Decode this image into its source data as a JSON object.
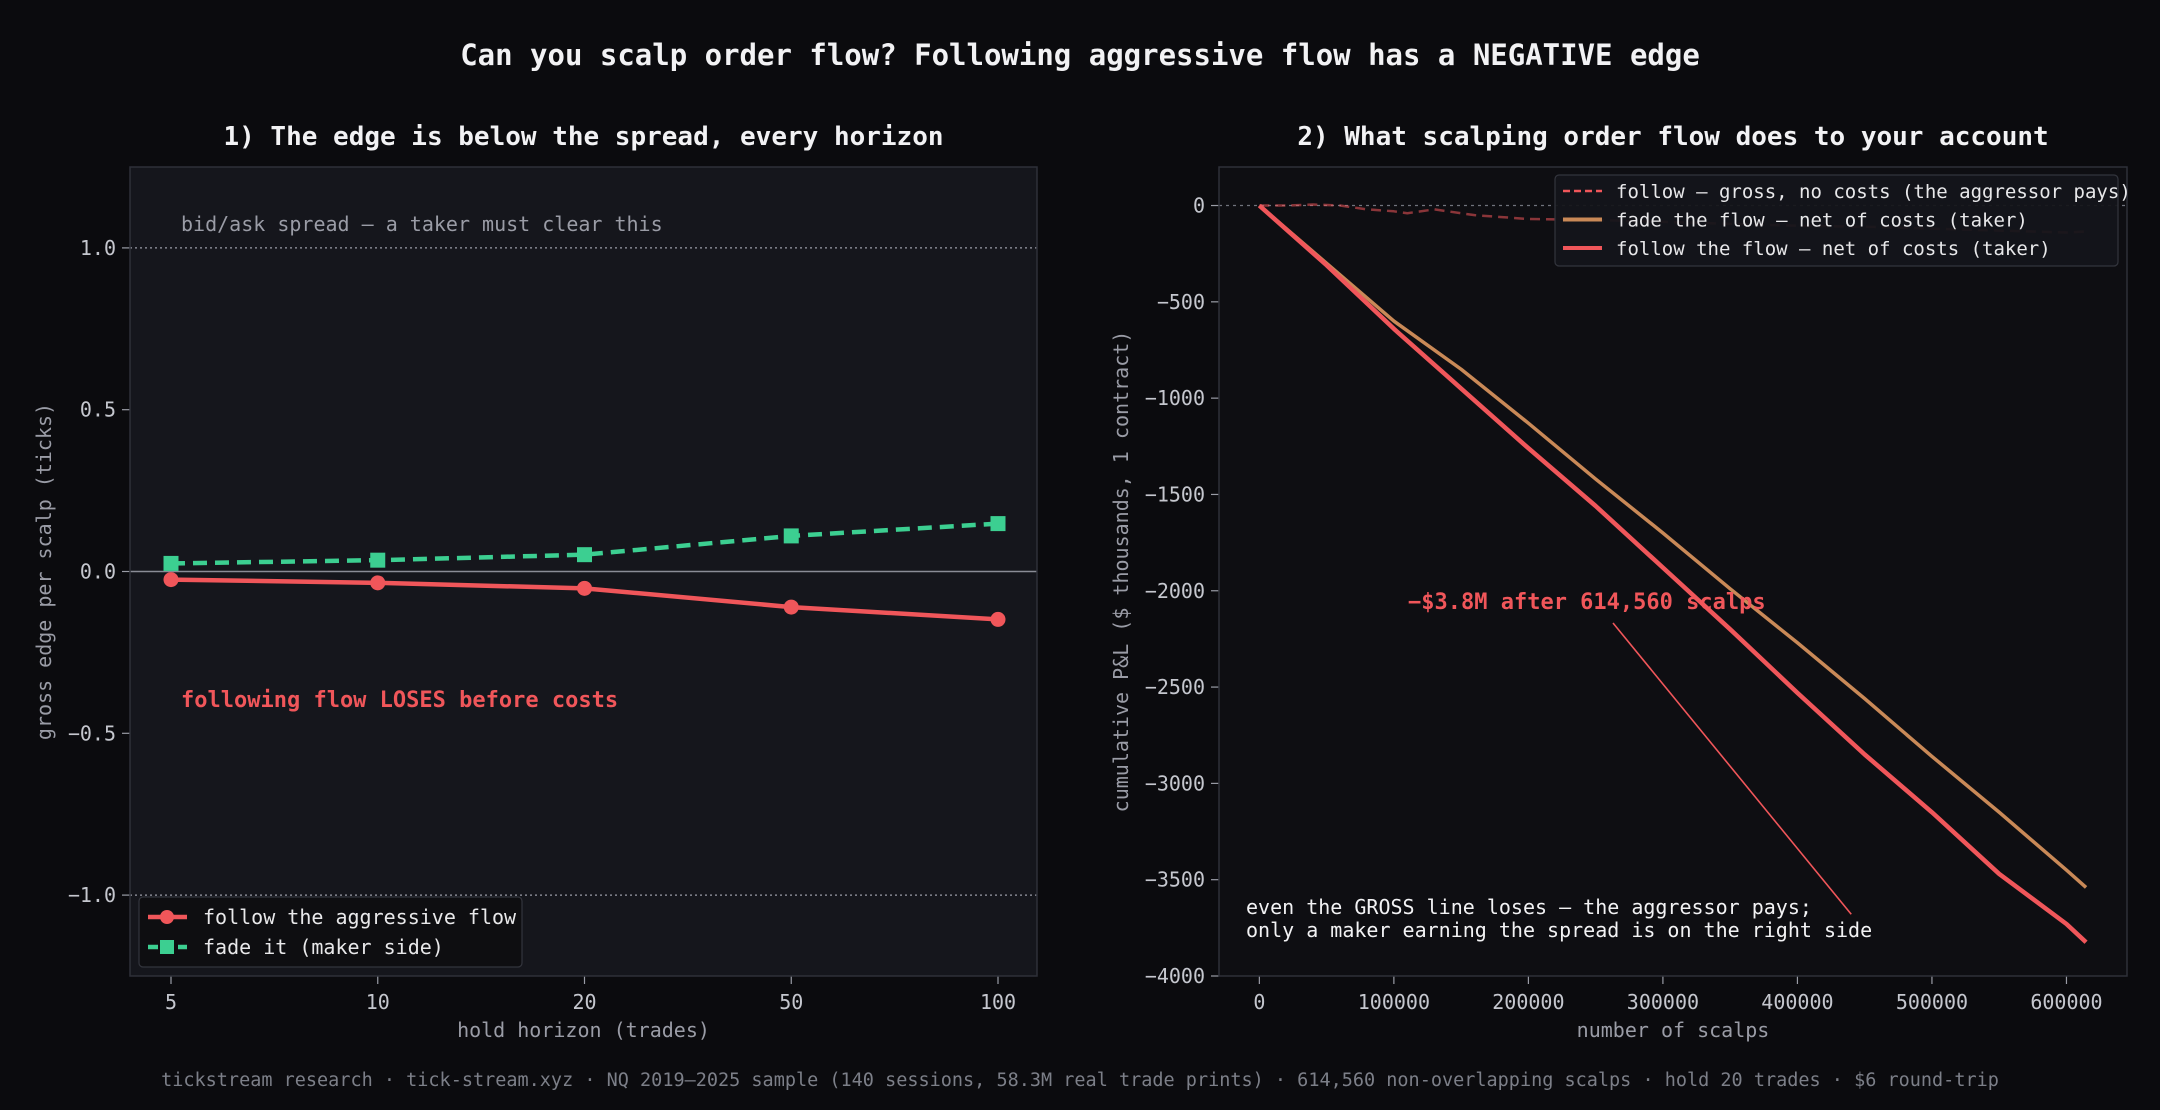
{
  "figure": {
    "title": "Can you scalp order flow? Following aggressive flow has a NEGATIVE edge",
    "footer": "tickstream research · tick-stream.xyz · NQ 2019–2025 sample (140 sessions, 58.3M real trade prints) · 614,560 non-overlapping scalps · hold 20 trades · $6 round-trip"
  },
  "colors": {
    "background": "#0b0b0e",
    "panel_bg_left": "#15161c",
    "panel_bg_right": "#0e0e12",
    "follow": "#f0565a",
    "fade": "#3ccf91",
    "fade_net": "#c98957",
    "text": "#e8e8ea",
    "muted": "#9a9ca6"
  },
  "chart_data": [
    {
      "type": "line",
      "title": "1) The edge is below the spread, every horizon",
      "xlabel": "hold horizon (trades)",
      "ylabel": "gross edge per scalp (ticks)",
      "categories": [
        "5",
        "10",
        "20",
        "50",
        "100"
      ],
      "ylim": [
        -1.25,
        1.25
      ],
      "yticks": [
        -1.0,
        -0.5,
        0.0,
        0.5,
        1.0
      ],
      "ytick_labels": [
        "−1.0",
        "−0.5",
        "0.0",
        "0.5",
        "1.0"
      ],
      "series": [
        {
          "name": "follow the aggressive flow",
          "marker": "circle",
          "style": "solid",
          "values": [
            -0.025,
            -0.035,
            -0.052,
            -0.11,
            -0.148
          ]
        },
        {
          "name": "fade it (maker side)",
          "marker": "square",
          "style": "dashed",
          "values": [
            0.025,
            0.035,
            0.052,
            0.11,
            0.148
          ]
        }
      ],
      "reference_lines": [
        1.0,
        -1.0
      ],
      "annotations": [
        {
          "text": "bid/ask spread — a taker must clear this"
        },
        {
          "text": "following flow LOSES before costs"
        }
      ],
      "legend": "lower-left",
      "grid": false
    },
    {
      "type": "line",
      "title": "2) What scalping order flow does to your account",
      "xlabel": "number of scalps",
      "ylabel": "cumulative P&L ($ thousands, 1 contract)",
      "xlim": [
        -30000,
        645000
      ],
      "ylim": [
        -4000,
        200
      ],
      "xticks": [
        0,
        100000,
        200000,
        300000,
        400000,
        500000,
        600000
      ],
      "xtick_labels": [
        "0",
        "100000",
        "200000",
        "300000",
        "400000",
        "500000",
        "600000"
      ],
      "yticks": [
        0,
        -500,
        -1000,
        -1500,
        -2000,
        -2500,
        -3000,
        -3500,
        -4000
      ],
      "ytick_labels": [
        "0",
        "−500",
        "−1000",
        "−1500",
        "−2000",
        "−2500",
        "−3000",
        "−3500",
        "−4000"
      ],
      "series": [
        {
          "name": "follow — gross, no costs (the aggressor pays)",
          "style": "dashed",
          "x": [
            0,
            20000,
            40000,
            60000,
            80000,
            100000,
            110000,
            130000,
            160000,
            200000,
            250000,
            300000,
            350000,
            400000,
            450000,
            500000,
            550000,
            600000,
            614560
          ],
          "y": [
            0,
            0,
            5,
            0,
            -20,
            -30,
            -40,
            -20,
            -50,
            -70,
            -75,
            -85,
            -95,
            -105,
            -110,
            -120,
            -130,
            -140,
            -135
          ]
        },
        {
          "name": "fade the flow — net of costs (taker)",
          "style": "solid",
          "x": [
            0,
            50000,
            100000,
            150000,
            200000,
            250000,
            300000,
            350000,
            400000,
            450000,
            500000,
            550000,
            600000,
            614560
          ],
          "y": [
            0,
            -300,
            -600,
            -850,
            -1130,
            -1420,
            -1700,
            -1990,
            -2270,
            -2560,
            -2860,
            -3150,
            -3450,
            -3540
          ]
        },
        {
          "name": "follow the flow — net of costs (taker)",
          "style": "solid",
          "x": [
            0,
            50000,
            100000,
            150000,
            200000,
            250000,
            300000,
            350000,
            400000,
            450000,
            500000,
            550000,
            600000,
            614560
          ],
          "y": [
            0,
            -310,
            -640,
            -950,
            -1260,
            -1560,
            -1880,
            -2200,
            -2530,
            -2850,
            -3150,
            -3470,
            -3730,
            -3825
          ]
        }
      ],
      "reference_lines": [
        0
      ],
      "annotations": [
        {
          "text": "−$3.8M after 614,560 scalps",
          "arrow_to": [
            440000,
            -3825
          ]
        },
        {
          "text": "even the GROSS line loses — the aggressor pays;"
        },
        {
          "text": "only a maker earning the spread is on the right side"
        }
      ],
      "legend": "top-right",
      "grid": false
    }
  ]
}
